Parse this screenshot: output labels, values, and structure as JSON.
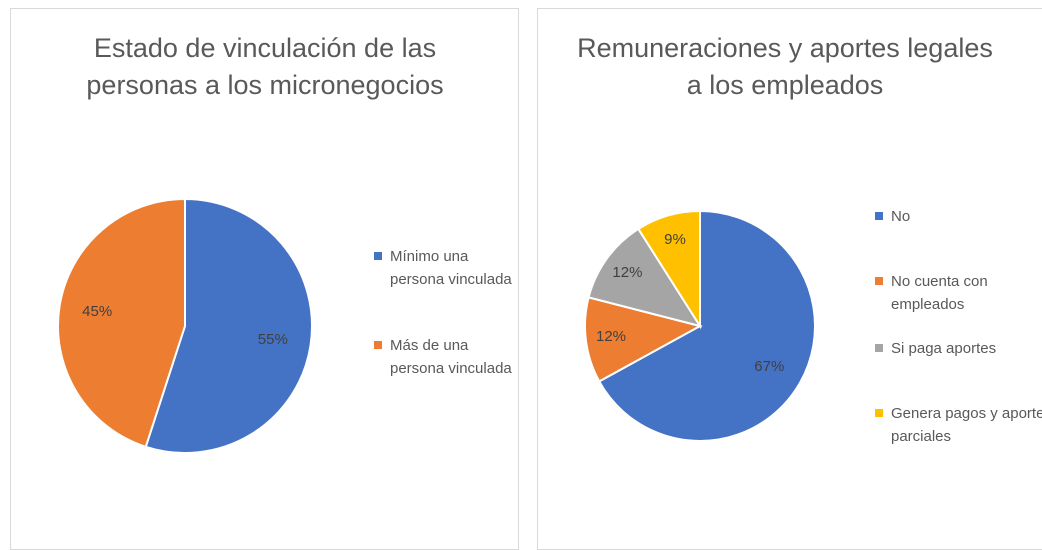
{
  "chart_data": [
    {
      "type": "pie",
      "title": "Estado de vinculación de las personas a los micronegocios",
      "categories": [
        "Mínimo una persona vinculada",
        "Más de una persona vinculada"
      ],
      "values": [
        55,
        45
      ],
      "value_labels": [
        "55%",
        "45%"
      ],
      "colors": [
        "#4472c4",
        "#ed7d31"
      ],
      "legend": "right"
    },
    {
      "type": "pie",
      "title": "Remuneraciones y aportes legales a los empleados",
      "categories": [
        "No",
        "No cuenta con empleados",
        "Si paga aportes",
        "Genera pagos y aportes parciales"
      ],
      "values": [
        67,
        12,
        12,
        9
      ],
      "value_labels": [
        "67%",
        "12%",
        "12%",
        "9%"
      ],
      "colors": [
        "#4472c4",
        "#ed7d31",
        "#a5a5a5",
        "#ffc000"
      ],
      "legend": "right"
    }
  ]
}
